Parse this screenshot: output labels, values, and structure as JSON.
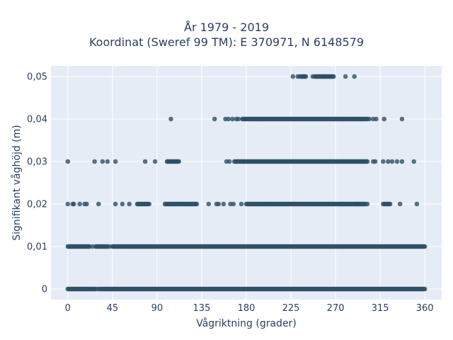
{
  "chart_data": {
    "type": "scatter",
    "title_line1": "År 1979 - 2019",
    "title_line2": "Koordinat (Sweref 99 TM): E 370971, N 6148579",
    "xlabel": "Vågriktning (grader)",
    "ylabel": "Signifikant våghöjd (m)",
    "xlim": [
      -17,
      377
    ],
    "ylim": [
      -0.0025,
      0.0525
    ],
    "xticks": [
      0,
      45,
      90,
      135,
      180,
      225,
      270,
      315,
      360
    ],
    "xtick_labels": [
      "0",
      "45",
      "90",
      "135",
      "180",
      "225",
      "270",
      "315",
      "360"
    ],
    "yticks": [
      0,
      0.01,
      0.02,
      0.03,
      0.04,
      0.05
    ],
    "ytick_labels": [
      "0",
      "0,01",
      "0,02",
      "0,03",
      "0,04",
      "0,05"
    ],
    "grid": true,
    "marker_color": "#2e5066",
    "plot_background": "#e5ecf6",
    "series": [
      {
        "y": 0,
        "x_ranges": [
          [
            0,
            28
          ],
          [
            32,
            360
          ]
        ],
        "x_points": [
          30
        ]
      },
      {
        "y": 0.01,
        "x_ranges": [
          [
            0,
            22
          ],
          [
            28,
            40
          ],
          [
            45,
            360
          ]
        ],
        "x_points": [
          25,
          42
        ]
      },
      {
        "y": 0.02,
        "x_ranges": [
          [
            70,
            82
          ],
          [
            98,
            130
          ],
          [
            180,
            300
          ],
          [
            318,
            325
          ]
        ],
        "x_points": [
          0,
          5,
          6,
          12,
          17,
          19,
          31,
          48,
          55,
          62,
          142,
          150,
          152,
          157,
          164,
          167,
          175,
          275,
          278,
          290,
          293,
          302,
          335,
          352
        ]
      },
      {
        "y": 0.03,
        "x_ranges": [
          [
            100,
            112
          ],
          [
            168,
            302
          ]
        ],
        "x_points": [
          0,
          27,
          35,
          40,
          48,
          78,
          88,
          160,
          163,
          308,
          310,
          318,
          323,
          327,
          332,
          337,
          349
        ]
      },
      {
        "y": 0.04,
        "x_ranges": [
          [
            176,
            302
          ]
        ],
        "x_points": [
          104,
          148,
          159,
          162,
          166,
          170,
          172,
          304,
          308,
          311,
          319,
          337
        ]
      },
      {
        "y": 0.05,
        "x_ranges": [
          [
            236,
            240
          ],
          [
            249,
            268
          ]
        ],
        "x_points": [
          227,
          232,
          234,
          236,
          247,
          258,
          280,
          289
        ]
      }
    ]
  }
}
